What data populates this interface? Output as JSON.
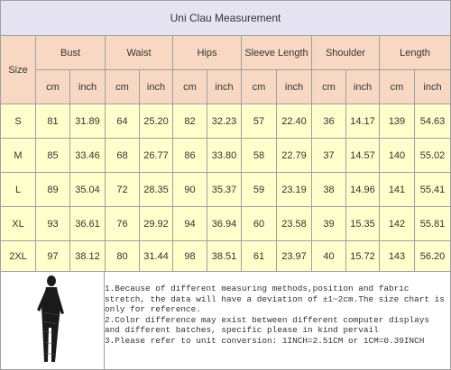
{
  "title": "Uni Clau Measurement",
  "table": {
    "size_header": "Size",
    "groups": [
      "Bust",
      "Waist",
      "Hips",
      "Sleeve Length",
      "Shoulder",
      "Length"
    ],
    "units": [
      "cm",
      "inch",
      "cm",
      "inch",
      "cm",
      "inch",
      "cm",
      "inch",
      "cm",
      "inch",
      "cm",
      "inch"
    ],
    "rows": [
      [
        "S",
        "81",
        "31.89",
        "64",
        "25.20",
        "82",
        "32.23",
        "57",
        "22.40",
        "36",
        "14.17",
        "139",
        "54.63"
      ],
      [
        "M",
        "85",
        "33.46",
        "68",
        "26.77",
        "86",
        "33.80",
        "58",
        "22.79",
        "37",
        "14.57",
        "140",
        "55.02"
      ],
      [
        "L",
        "89",
        "35.04",
        "72",
        "28.35",
        "90",
        "35.37",
        "59",
        "23.19",
        "38",
        "14.96",
        "141",
        "55.41"
      ],
      [
        "XL",
        "93",
        "36.61",
        "76",
        "29.92",
        "94",
        "36.94",
        "60",
        "23.58",
        "39",
        "15.35",
        "142",
        "55.81"
      ],
      [
        "2XL",
        "97",
        "38.12",
        "80",
        "31.44",
        "98",
        "38.51",
        "61",
        "23.97",
        "40",
        "15.72",
        "143",
        "56.20"
      ]
    ]
  },
  "notes": [
    "1.Because of different measuring methods,position and fabric stretch, the data will have a deviation of ±1~2cm.The size chart is only for reference.",
    "2.Color difference may exist between different computer displays and different batches, specific please in kind pervail",
    "3.Please refer to unit conversion: 1INCH=2.51CM or 1CM=0.39INCH"
  ]
}
